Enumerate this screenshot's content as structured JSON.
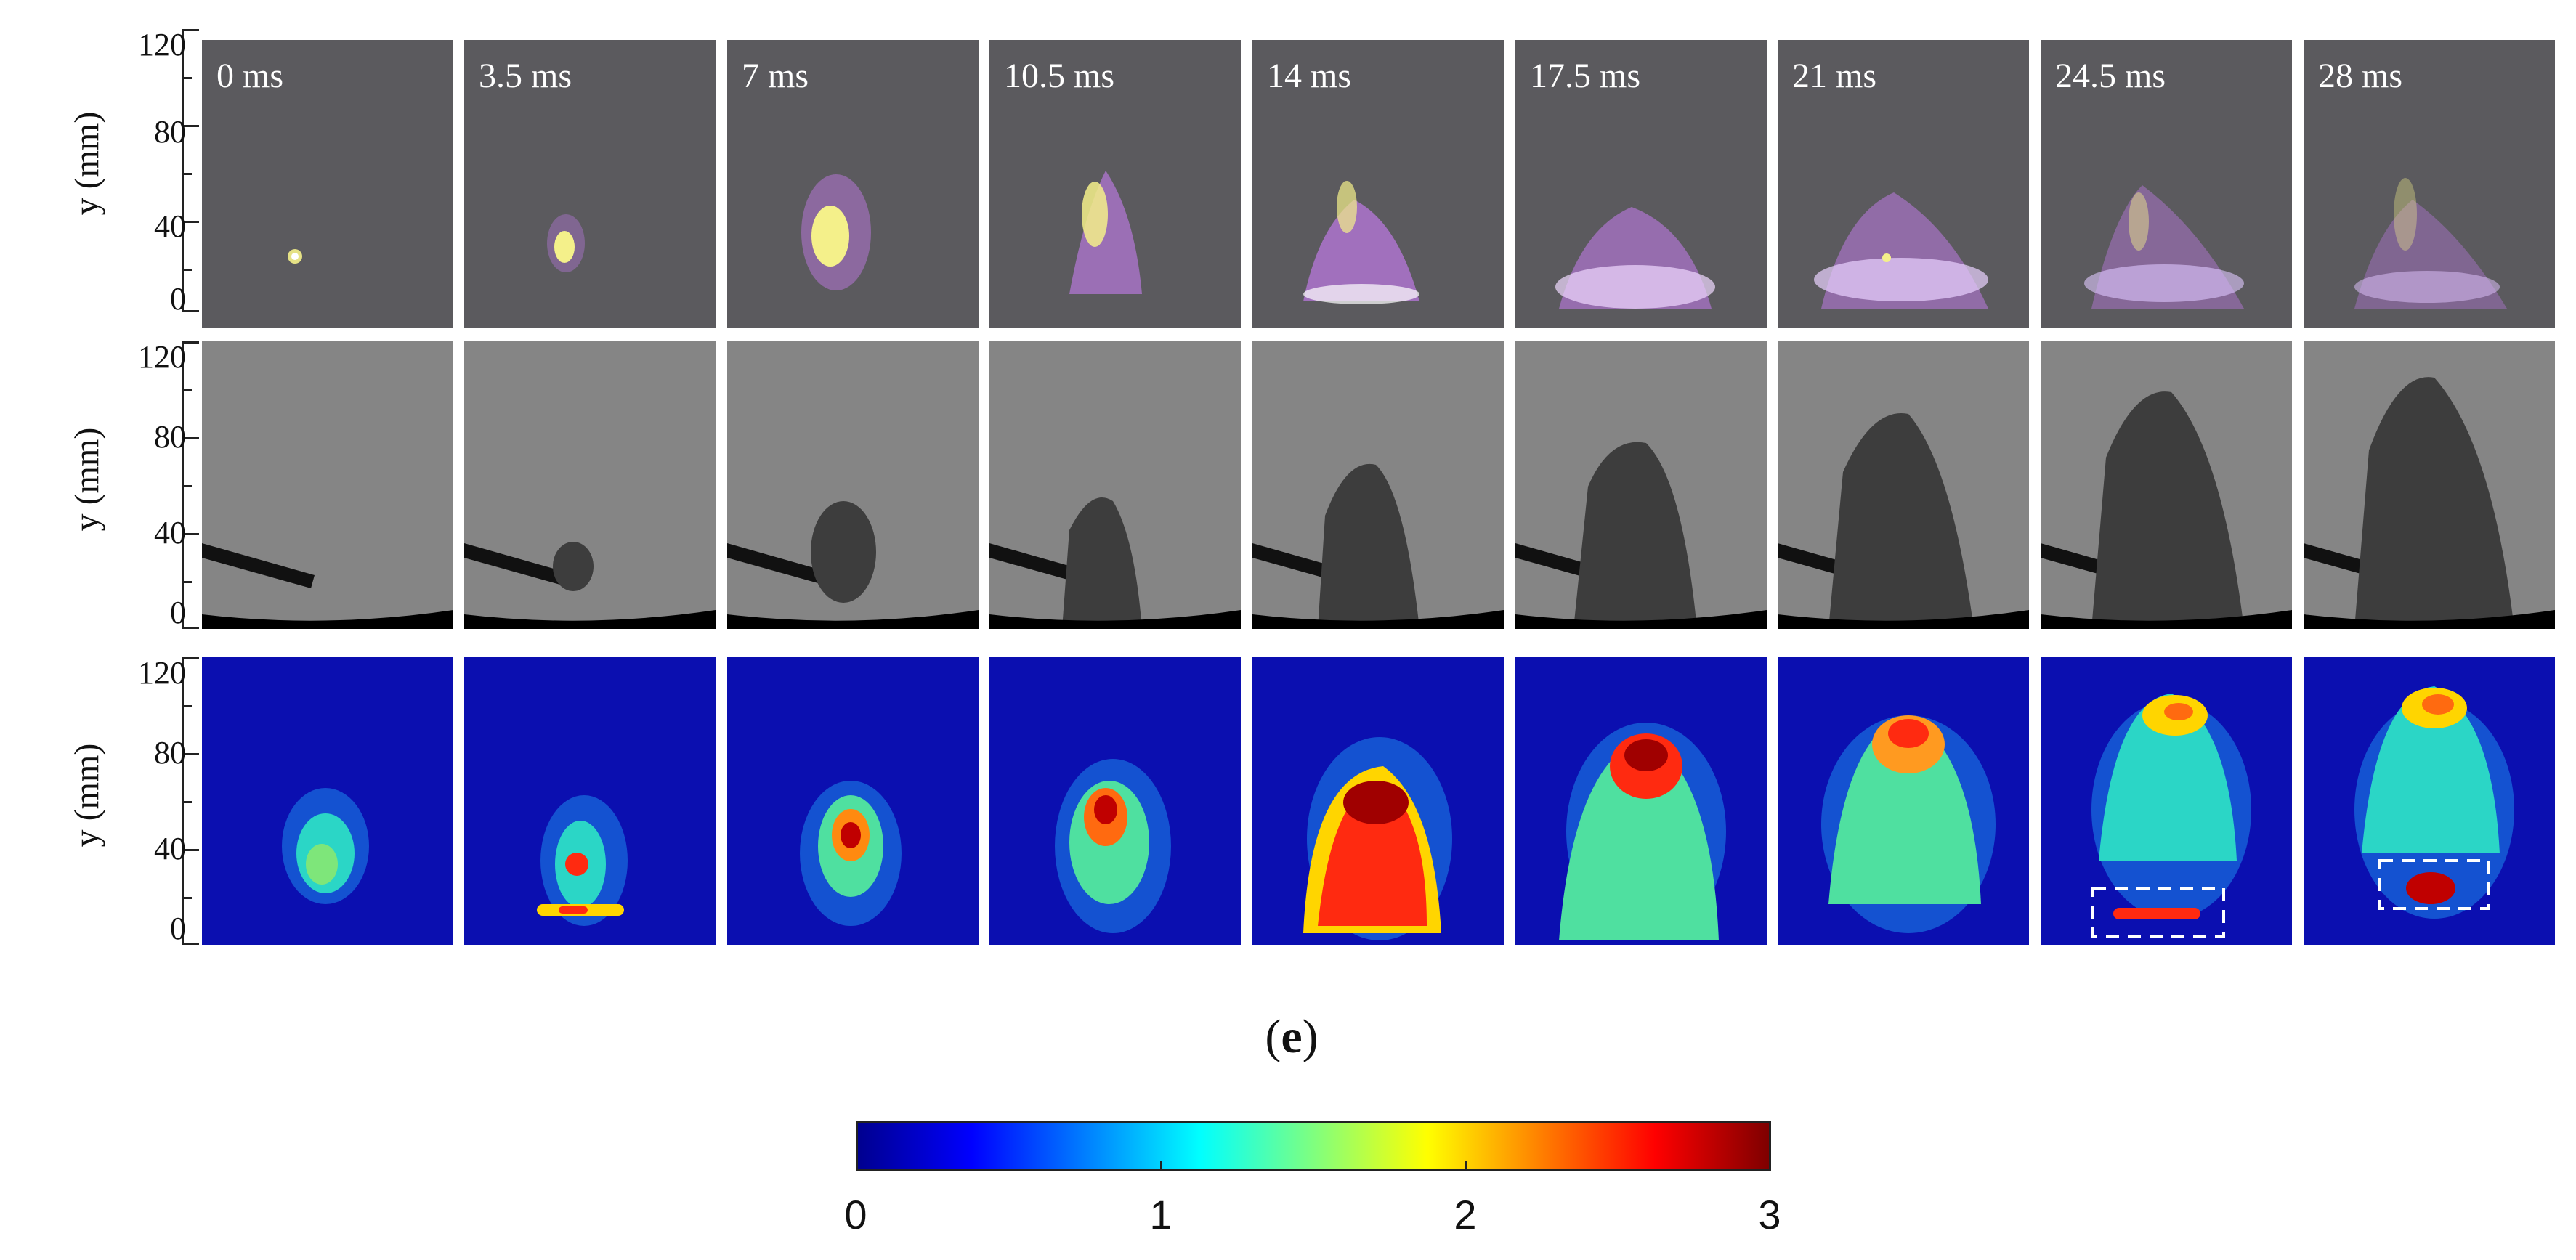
{
  "y_axis": {
    "label": "y (mm)",
    "ticks": [
      "120",
      "80",
      "40",
      "0"
    ]
  },
  "time_labels": [
    "0 ms",
    "3.5 ms",
    "7 ms",
    "10.5 ms",
    "14 ms",
    "17.5 ms",
    "21 ms",
    "24.5 ms",
    "28 ms"
  ],
  "rows": [
    {
      "name": "flame-luminosity",
      "colors": {
        "background": "#5b5a5e",
        "core": "#f4f08a",
        "glow": "#c77df0"
      }
    },
    {
      "name": "schlieren",
      "colors": {
        "background": "#858585",
        "plume": "#3d3d3d",
        "tube": "#111111"
      }
    },
    {
      "name": "intensity-field",
      "colors": {
        "background": "#0b0fb0"
      }
    }
  ],
  "caption": {
    "open": "(",
    "letter": "e",
    "close": ")"
  },
  "colorbar": {
    "min": 0,
    "max": 3,
    "tick_labels": [
      "0",
      "1",
      "2",
      "3"
    ],
    "colormap": "jet"
  }
}
